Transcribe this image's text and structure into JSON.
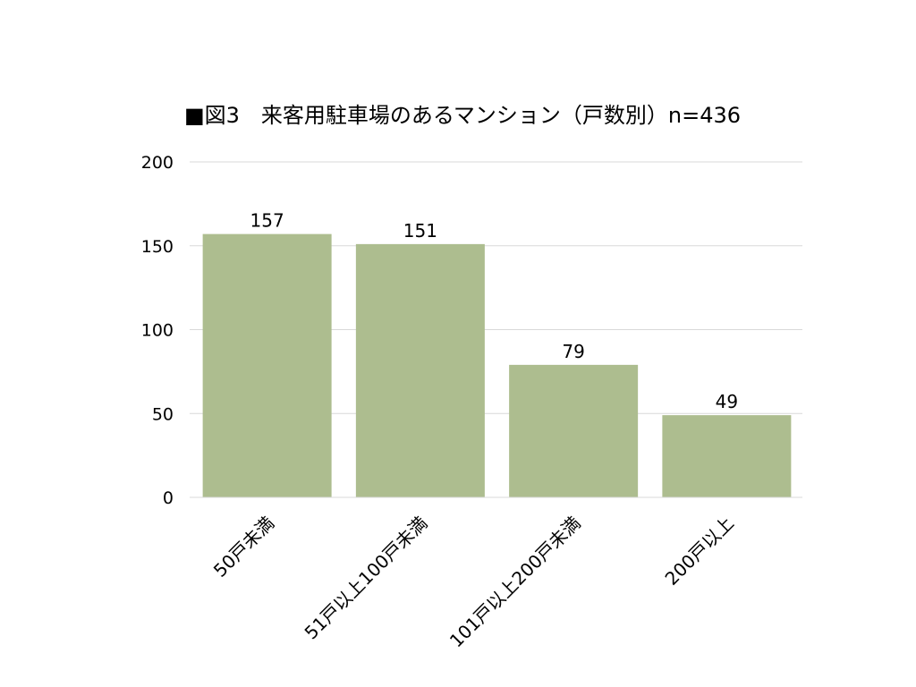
{
  "chart_data": {
    "type": "bar",
    "title": "■図3　来客用駐車場のあるマンション（戸数別）n=436",
    "xlabel": "",
    "ylabel": "",
    "categories": [
      "50戸未満",
      "51戸以上100戸未満",
      "101戸以上200戸未満",
      "200戸以上"
    ],
    "values": [
      157,
      151,
      79,
      49
    ],
    "data_labels": [
      "157",
      "151",
      "79",
      "49"
    ],
    "ylim": [
      0,
      200
    ],
    "yticks": [
      0,
      50,
      100,
      150,
      200
    ],
    "ytick_labels": [
      "0",
      "50",
      "100",
      "150",
      "200"
    ],
    "grid": true,
    "legend": "none",
    "bar_color": "#adbd8f",
    "grid_color": "#d9d9d9",
    "axis_color": "#d9d9d9"
  }
}
